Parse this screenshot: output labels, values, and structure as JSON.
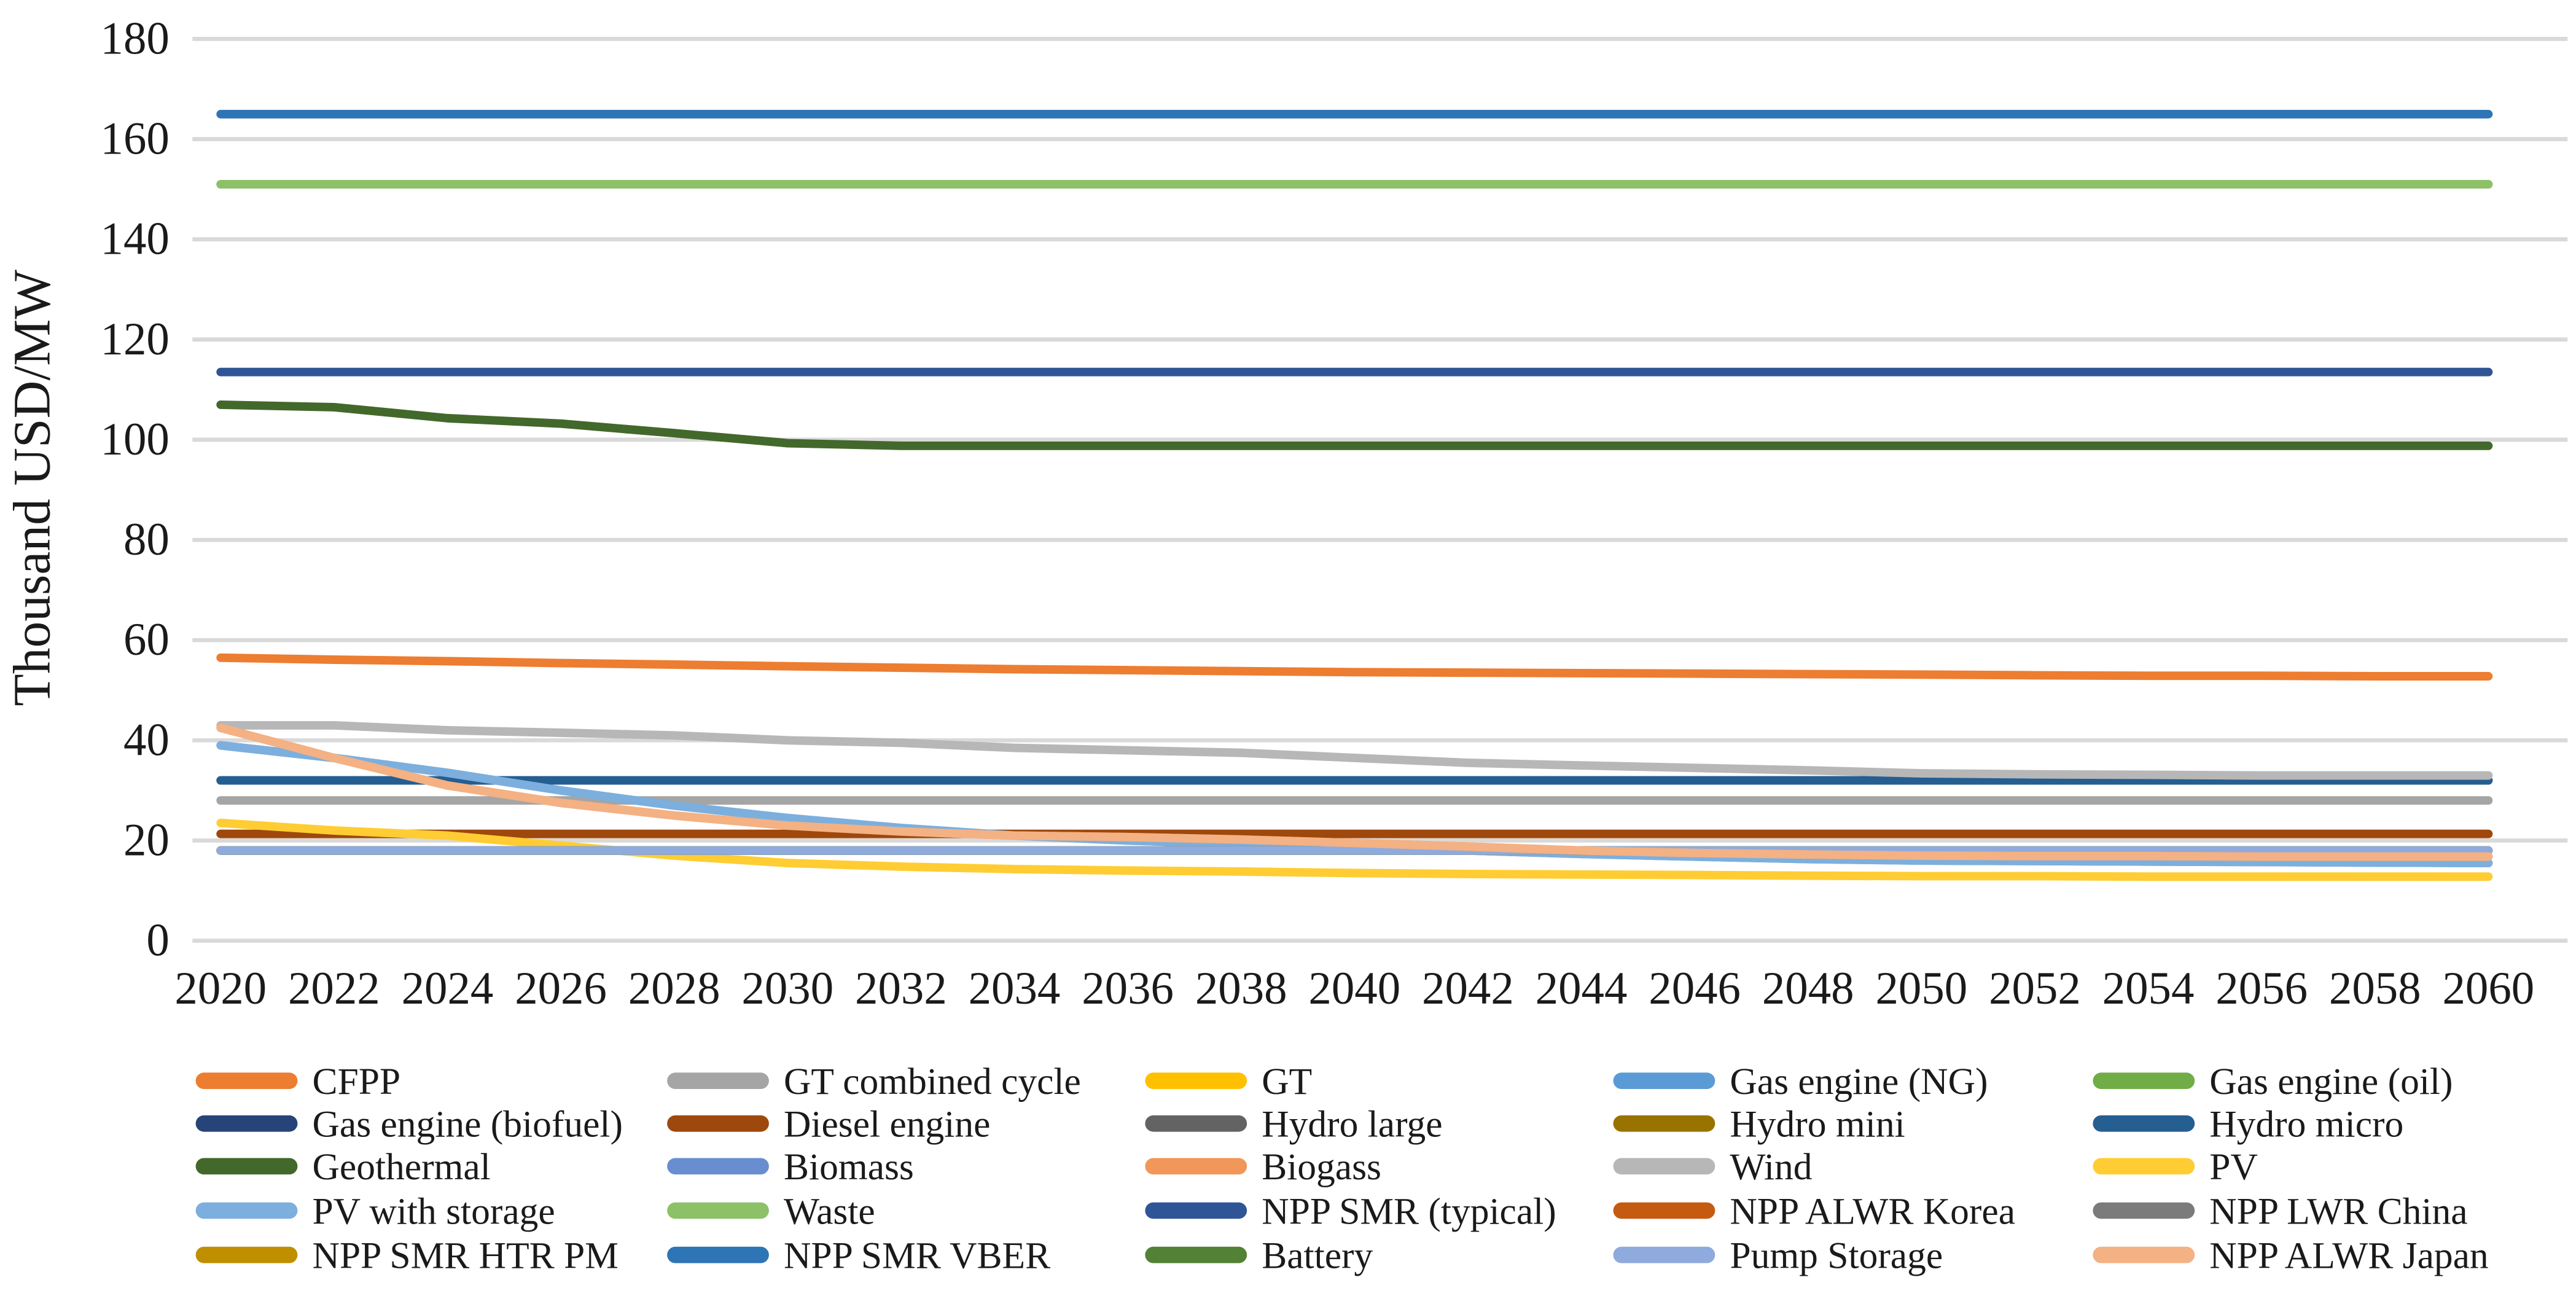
{
  "chart_data": {
    "type": "line",
    "title": "",
    "xlabel": "",
    "ylabel": "Thousand USD/MW",
    "ylim": [
      0,
      180
    ],
    "ytick_step": 20,
    "ytick_labels": [
      "0",
      "20",
      "40",
      "60",
      "80",
      "100",
      "120",
      "140",
      "160",
      "180"
    ],
    "x": [
      2020,
      2022,
      2024,
      2026,
      2028,
      2030,
      2032,
      2034,
      2036,
      2038,
      2040,
      2042,
      2044,
      2046,
      2048,
      2050,
      2052,
      2054,
      2056,
      2058,
      2060
    ],
    "xtick_labels": [
      "2020",
      "2022",
      "2024",
      "2026",
      "2028",
      "2030",
      "2032",
      "2034",
      "2036",
      "2038",
      "2040",
      "2042",
      "2044",
      "2046",
      "2048",
      "2050",
      "2052",
      "2054",
      "2056",
      "2058",
      "2060"
    ],
    "grid": "horizontal",
    "gridline_color": "#D9D9D9",
    "axis_text_color": "#1a1a1a",
    "legend_position": "bottom",
    "legend_rows": 5,
    "legend_columns": 5,
    "series": [
      {
        "name": "CFPP",
        "color": "#ED7D31",
        "values": [
          56.5,
          56.1,
          55.8,
          55.4,
          55.1,
          54.8,
          54.5,
          54.2,
          54,
          53.8,
          53.6,
          53.5,
          53.4,
          53.3,
          53.2,
          53.1,
          53,
          52.9,
          52.9,
          52.8,
          52.8
        ]
      },
      {
        "name": "GT combined cycle",
        "color": "#A5A5A5",
        "values": [
          28,
          28,
          28,
          28,
          28,
          28,
          28,
          28,
          28,
          28,
          28,
          28,
          28,
          28,
          28,
          28,
          28,
          28,
          28,
          28,
          28
        ]
      },
      {
        "name": "GT",
        "color": "#FFC000",
        "values": [
          21.3,
          21.3,
          21.3,
          21.3,
          21.3,
          21.3,
          21.3,
          21.3,
          21.3,
          21.3,
          21.3,
          21.3,
          21.3,
          21.3,
          21.3,
          21.3,
          21.3,
          21.3,
          21.3,
          21.3,
          21.3
        ]
      },
      {
        "name": "Gas engine (NG)",
        "color": "#5B9BD5",
        "values": [
          39,
          36.5,
          33.5,
          30,
          27,
          24.5,
          22.5,
          21,
          20,
          19.3,
          18.6,
          18,
          17.3,
          16.8,
          16.3,
          16,
          15.9,
          15.8,
          15.7,
          15.6,
          15.5
        ]
      },
      {
        "name": "Gas engine (oil)",
        "color": "#70AD47",
        "values": [
          151,
          151,
          151,
          151,
          151,
          151,
          151,
          151,
          151,
          151,
          151,
          151,
          151,
          151,
          151,
          151,
          151,
          151,
          151,
          151,
          151
        ]
      },
      {
        "name": "Gas engine (biofuel)",
        "color": "#264478",
        "values": [
          32,
          32,
          32,
          32,
          32,
          32,
          32,
          32,
          32,
          32,
          32,
          32,
          32,
          32,
          32,
          32,
          32,
          32,
          32,
          32,
          32
        ]
      },
      {
        "name": "Diesel engine",
        "color": "#9E480E",
        "values": [
          21.3,
          21.3,
          21.3,
          21.3,
          21.3,
          21.3,
          21.3,
          21.3,
          21.3,
          21.3,
          21.3,
          21.3,
          21.3,
          21.3,
          21.3,
          21.3,
          21.3,
          21.3,
          21.3,
          21.3,
          21.3
        ]
      },
      {
        "name": "Hydro large",
        "color": "#636363",
        "values": [
          18,
          18,
          18,
          18,
          18,
          18,
          18,
          18,
          18,
          18,
          18,
          18,
          18,
          18,
          18,
          18,
          18,
          18,
          18,
          18,
          18
        ]
      },
      {
        "name": "Hydro mini",
        "color": "#997300",
        "values": [
          18,
          18,
          18,
          18,
          18,
          18,
          18,
          18,
          18,
          18,
          18,
          18,
          18,
          18,
          18,
          18,
          18,
          18,
          18,
          18,
          18
        ]
      },
      {
        "name": "Hydro micro",
        "color": "#255E91",
        "values": [
          32,
          32,
          32,
          32,
          32,
          32,
          32,
          32,
          32,
          32,
          32,
          32,
          32,
          32,
          32,
          32,
          32,
          32,
          32,
          32,
          32
        ]
      },
      {
        "name": "Geothermal",
        "color": "#43682B",
        "values": [
          107,
          106.5,
          104.3,
          103.2,
          101.3,
          99.3,
          98.8,
          98.8,
          98.8,
          98.8,
          98.8,
          98.8,
          98.8,
          98.8,
          98.8,
          98.8,
          98.8,
          98.8,
          98.8,
          98.8,
          98.8
        ]
      },
      {
        "name": "Biomass",
        "color": "#698ED0",
        "values": [
          18,
          18,
          18,
          18,
          18,
          18,
          18,
          18,
          18,
          18,
          18,
          18,
          18,
          18,
          18,
          18,
          18,
          18,
          18,
          18,
          18
        ]
      },
      {
        "name": "Biogass",
        "color": "#F1975A",
        "values": [
          42.5,
          36.5,
          31,
          27.5,
          25,
          23,
          21.8,
          21,
          20.7,
          20.2,
          19.5,
          18.8,
          18,
          17.5,
          17.2,
          17,
          16.9,
          16.9,
          16.8,
          16.8,
          16.8
        ]
      },
      {
        "name": "Wind",
        "color": "#B7B7B7",
        "values": [
          43,
          43,
          42,
          41.5,
          41,
          40,
          39.5,
          38.5,
          38,
          37.5,
          36.5,
          35.5,
          35,
          34.5,
          34,
          33.4,
          33.2,
          33.1,
          33,
          33,
          33
        ]
      },
      {
        "name": "PV",
        "color": "#FFCD33",
        "values": [
          23.5,
          22,
          21,
          19,
          17,
          15.5,
          14.8,
          14.3,
          14,
          13.8,
          13.5,
          13.3,
          13.2,
          13.1,
          13,
          12.9,
          12.9,
          12.8,
          12.8,
          12.8,
          12.8
        ]
      },
      {
        "name": "PV with storage",
        "color": "#7CAFDD",
        "values": [
          39,
          36.5,
          33.5,
          30,
          27,
          24.5,
          22.5,
          21,
          20,
          19.3,
          18.6,
          18,
          17.3,
          16.8,
          16.3,
          16,
          15.9,
          15.8,
          15.7,
          15.6,
          15.5
        ]
      },
      {
        "name": "Waste",
        "color": "#8CC168",
        "values": [
          151,
          151,
          151,
          151,
          151,
          151,
          151,
          151,
          151,
          151,
          151,
          151,
          151,
          151,
          151,
          151,
          151,
          151,
          151,
          151,
          151
        ]
      },
      {
        "name": "NPP SMR (typical)",
        "color": "#2F5597",
        "values": [
          113.5,
          113.5,
          113.5,
          113.5,
          113.5,
          113.5,
          113.5,
          113.5,
          113.5,
          113.5,
          113.5,
          113.5,
          113.5,
          113.5,
          113.5,
          113.5,
          113.5,
          113.5,
          113.5,
          113.5,
          113.5
        ]
      },
      {
        "name": "NPP ALWR Korea",
        "color": "#C55A11",
        "values": [
          18,
          18,
          18,
          18,
          18,
          18,
          18,
          18,
          18,
          18,
          18,
          18,
          18,
          18,
          18,
          18,
          18,
          18,
          18,
          18,
          18
        ]
      },
      {
        "name": "NPP LWR China",
        "color": "#7B7B7B",
        "values": [
          18,
          18,
          18,
          18,
          18,
          18,
          18,
          18,
          18,
          18,
          18,
          18,
          18,
          18,
          18,
          18,
          18,
          18,
          18,
          18,
          18
        ]
      },
      {
        "name": "NPP SMR HTR PM",
        "color": "#BF8F00",
        "values": [
          18,
          18,
          18,
          18,
          18,
          18,
          18,
          18,
          18,
          18,
          18,
          18,
          18,
          18,
          18,
          18,
          18,
          18,
          18,
          18,
          18
        ]
      },
      {
        "name": "NPP SMR VBER",
        "color": "#2E75B6",
        "values": [
          165,
          165,
          165,
          165,
          165,
          165,
          165,
          165,
          165,
          165,
          165,
          165,
          165,
          165,
          165,
          165,
          165,
          165,
          165,
          165,
          165
        ]
      },
      {
        "name": "Battery",
        "color": "#538135",
        "values": [
          18,
          18,
          18,
          18,
          18,
          18,
          18,
          18,
          18,
          18,
          18,
          18,
          18,
          18,
          18,
          18,
          18,
          18,
          18,
          18,
          18
        ]
      },
      {
        "name": "Pump Storage",
        "color": "#8FAADC",
        "values": [
          18,
          18,
          18,
          18,
          18,
          18,
          18,
          18,
          18,
          18,
          18,
          18,
          18,
          18,
          18,
          18,
          18,
          18,
          18,
          18,
          18
        ]
      },
      {
        "name": "NPP ALWR Japan",
        "color": "#F4B183",
        "values": [
          42.5,
          36.5,
          31,
          27.5,
          25,
          23,
          21.8,
          21,
          20.7,
          20.2,
          19.5,
          18.8,
          18,
          17.5,
          17.2,
          17,
          16.9,
          16.9,
          16.8,
          16.8,
          16.8
        ]
      }
    ]
  }
}
